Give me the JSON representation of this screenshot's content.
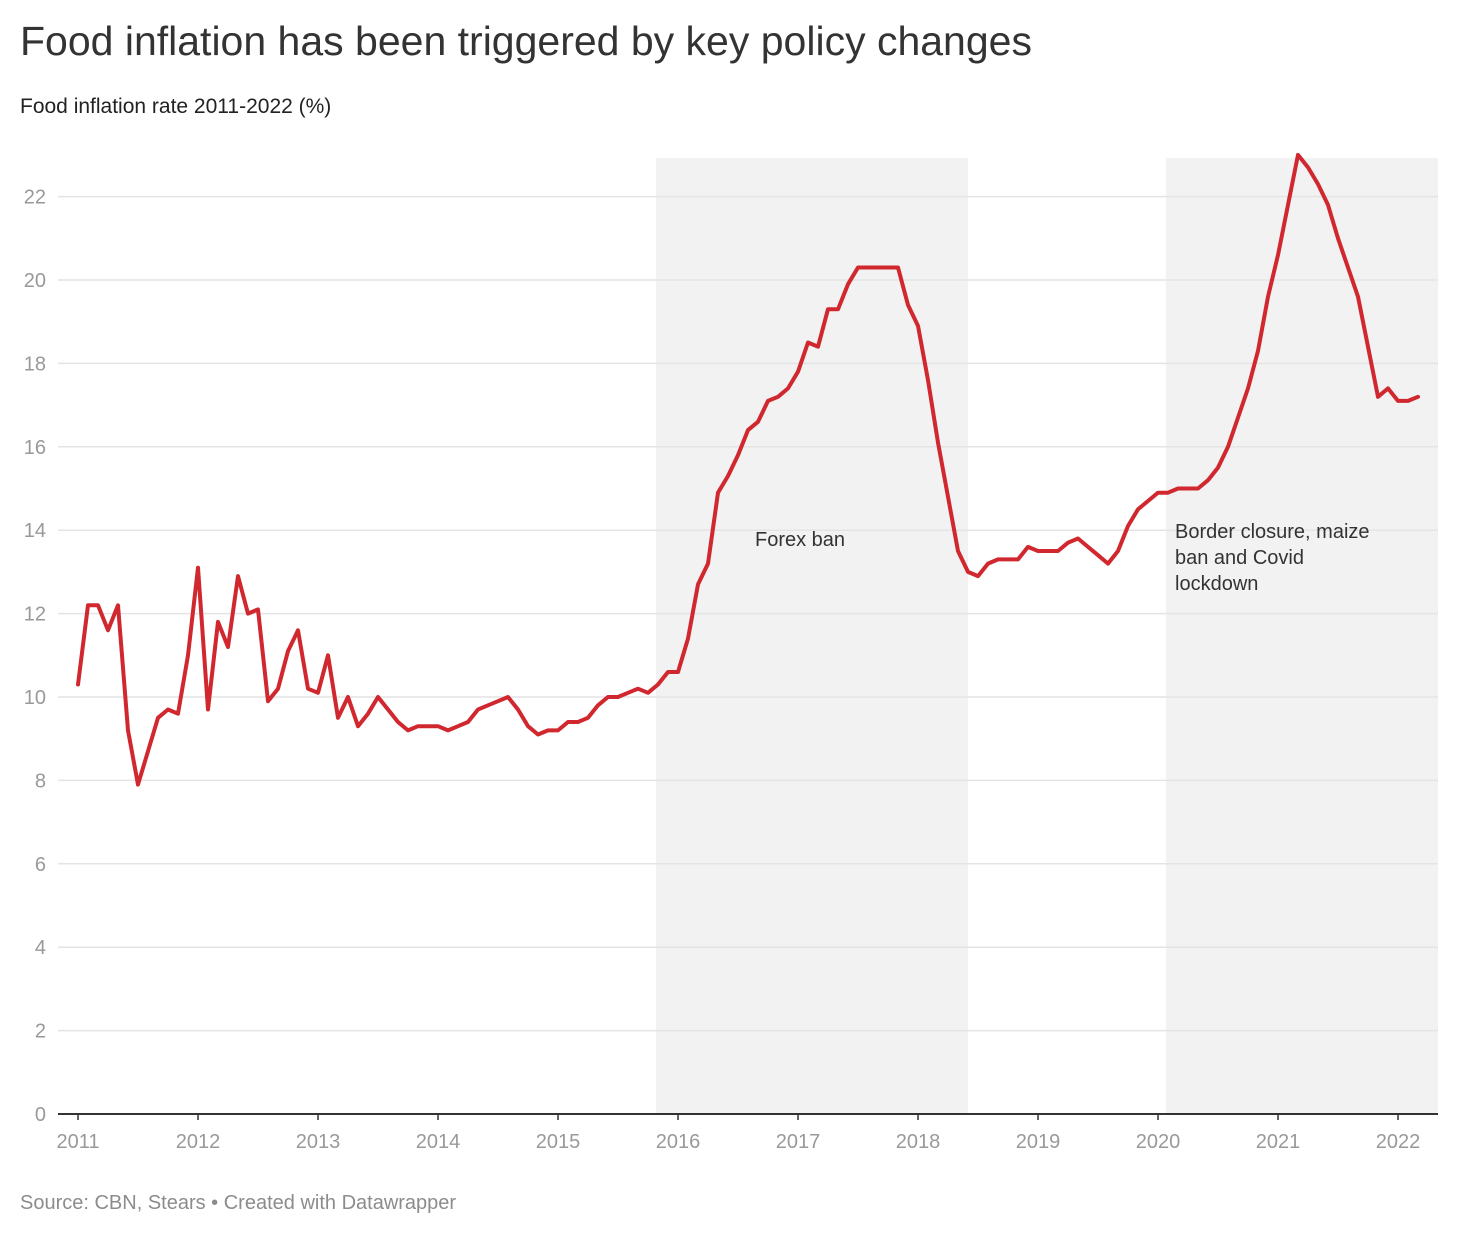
{
  "title": "Food inflation has been triggered by key policy changes",
  "subtitle": "Food inflation rate 2011-2022 (%)",
  "footer": "Source: CBN, Stears • Created with Datawrapper",
  "colors": {
    "line": "#d0282e",
    "shade": "#f2f2f2",
    "grid": "#e4e4e4",
    "axis": "#333333"
  },
  "chart_data": {
    "type": "line",
    "title": "Food inflation has been triggered by key policy changes",
    "subtitle": "Food inflation rate 2011-2022 (%)",
    "xlabel": "",
    "ylabel": "",
    "ylim": [
      0,
      23
    ],
    "xlim": [
      "2011-01",
      "2022-03"
    ],
    "y_ticks": [
      0,
      2,
      4,
      6,
      8,
      10,
      12,
      14,
      16,
      18,
      20,
      22
    ],
    "x_ticks": [
      "2011",
      "2012",
      "2013",
      "2014",
      "2015",
      "2016",
      "2017",
      "2018",
      "2019",
      "2020",
      "2021",
      "2022"
    ],
    "grid": true,
    "legend": "none",
    "annotations": [
      {
        "text": [
          "Forex ban"
        ],
        "x": "2016-08"
      },
      {
        "text": [
          "Border closure, maize",
          "ban and Covid",
          "lockdown"
        ],
        "x": "2020-02"
      }
    ],
    "shaded_periods": [
      {
        "from": "2015-11",
        "to": "2018-04"
      },
      {
        "from": "2020-02",
        "to": "2022-03"
      }
    ],
    "series": [
      {
        "x": [
          "2011-01",
          "2011-02",
          "2011-03",
          "2011-04",
          "2011-05",
          "2011-06",
          "2011-07",
          "2011-08",
          "2011-09",
          "2011-10",
          "2011-11",
          "2011-12",
          "2012-01",
          "2012-02",
          "2012-03",
          "2012-04",
          "2012-05",
          "2012-06",
          "2012-07",
          "2012-08",
          "2012-09",
          "2012-10",
          "2012-11",
          "2012-12",
          "2013-01",
          "2013-02",
          "2013-03",
          "2013-04",
          "2013-05",
          "2013-06",
          "2013-07",
          "2013-08",
          "2013-09",
          "2013-10",
          "2013-11",
          "2013-12",
          "2014-01",
          "2014-02",
          "2014-03",
          "2014-04",
          "2014-05",
          "2014-06",
          "2014-07",
          "2014-08",
          "2014-09",
          "2014-10",
          "2014-11",
          "2014-12",
          "2015-01",
          "2015-02",
          "2015-03",
          "2015-04",
          "2015-05",
          "2015-06",
          "2015-07",
          "2015-08",
          "2015-09",
          "2015-10",
          "2015-11",
          "2015-12",
          "2016-01",
          "2016-02",
          "2016-03",
          "2016-04",
          "2016-05",
          "2016-06",
          "2016-07",
          "2016-08",
          "2016-09",
          "2016-10",
          "2016-11",
          "2016-12",
          "2017-01",
          "2017-02",
          "2017-03",
          "2017-04",
          "2017-05",
          "2017-06",
          "2017-07",
          "2017-08",
          "2017-09",
          "2017-10",
          "2017-11",
          "2017-12",
          "2018-01",
          "2018-02",
          "2018-03",
          "2018-04",
          "2018-05",
          "2018-06",
          "2018-07",
          "2018-08",
          "2018-09",
          "2018-10",
          "2018-11",
          "2018-12",
          "2019-01",
          "2019-02",
          "2019-03",
          "2019-04",
          "2019-05",
          "2019-06",
          "2019-07",
          "2019-08",
          "2019-09",
          "2019-10",
          "2019-11",
          "2019-12",
          "2020-01",
          "2020-02",
          "2020-03",
          "2020-04",
          "2020-05",
          "2020-06",
          "2020-07",
          "2020-08",
          "2020-09",
          "2020-10",
          "2020-11",
          "2020-12",
          "2021-01",
          "2021-02",
          "2021-03",
          "2021-04",
          "2021-05",
          "2021-06",
          "2021-07",
          "2021-08",
          "2021-09",
          "2021-10",
          "2021-11",
          "2021-12",
          "2022-01",
          "2022-02",
          "2022-03"
        ],
        "values": [
          10.3,
          12.2,
          12.2,
          11.6,
          12.2,
          9.2,
          7.9,
          8.7,
          9.5,
          9.7,
          9.6,
          11.0,
          13.1,
          9.7,
          11.8,
          11.2,
          12.9,
          12.0,
          12.1,
          9.9,
          10.2,
          11.1,
          11.6,
          10.2,
          10.1,
          11.0,
          9.5,
          10.0,
          9.3,
          9.6,
          10.0,
          9.7,
          9.4,
          9.2,
          9.3,
          9.3,
          9.3,
          9.2,
          9.3,
          9.4,
          9.7,
          9.8,
          9.9,
          10.0,
          9.7,
          9.3,
          9.1,
          9.2,
          9.2,
          9.4,
          9.4,
          9.5,
          9.8,
          10.0,
          10.0,
          10.1,
          10.2,
          10.1,
          10.3,
          10.6,
          10.6,
          11.4,
          12.7,
          13.2,
          14.9,
          15.3,
          15.8,
          16.4,
          16.6,
          17.1,
          17.2,
          17.4,
          17.8,
          18.5,
          18.4,
          19.3,
          19.3,
          19.9,
          20.3,
          20.3,
          20.3,
          20.3,
          20.3,
          19.4,
          18.9,
          17.6,
          16.1,
          14.8,
          13.5,
          13.0,
          12.9,
          13.2,
          13.3,
          13.3,
          13.3,
          13.6,
          13.5,
          13.5,
          13.5,
          13.7,
          13.8,
          13.6,
          13.4,
          13.2,
          13.5,
          14.1,
          14.5,
          14.7,
          14.9,
          14.9,
          15.0,
          15.0,
          15.0,
          15.2,
          15.5,
          16.0,
          16.7,
          17.4,
          18.3,
          19.6,
          20.6,
          21.8,
          23.0,
          22.7,
          22.3,
          21.8,
          21.0,
          20.3,
          19.6,
          18.4,
          17.2,
          17.4,
          17.1,
          17.1,
          17.2
        ]
      }
    ]
  }
}
